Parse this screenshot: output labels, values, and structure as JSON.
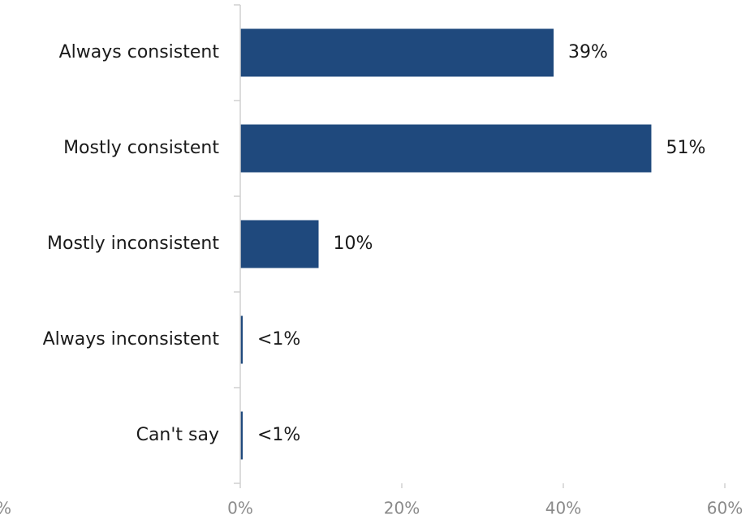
{
  "chart_data": {
    "type": "bar",
    "orientation": "horizontal",
    "categories": [
      "Always consistent",
      "Mostly consistent",
      "Mostly inconsistent",
      "Always inconsistent",
      "Can't say"
    ],
    "values": [
      38.8,
      50.9,
      9.7,
      0.3,
      0.3
    ],
    "data_labels": [
      "39%",
      "51%",
      "10%",
      "<1%",
      "<1%"
    ],
    "x_ticks": [
      "0%",
      "20%",
      "40%",
      "60%"
    ],
    "x_tick_values": [
      0,
      20,
      40,
      60
    ],
    "extra_tick_label": "%",
    "xlim": [
      0,
      60
    ],
    "title": "",
    "xlabel": "",
    "ylabel": "",
    "grid": false,
    "legend": "none",
    "bar_color": "#1f497d",
    "axis_color": "#d0d0d0"
  }
}
